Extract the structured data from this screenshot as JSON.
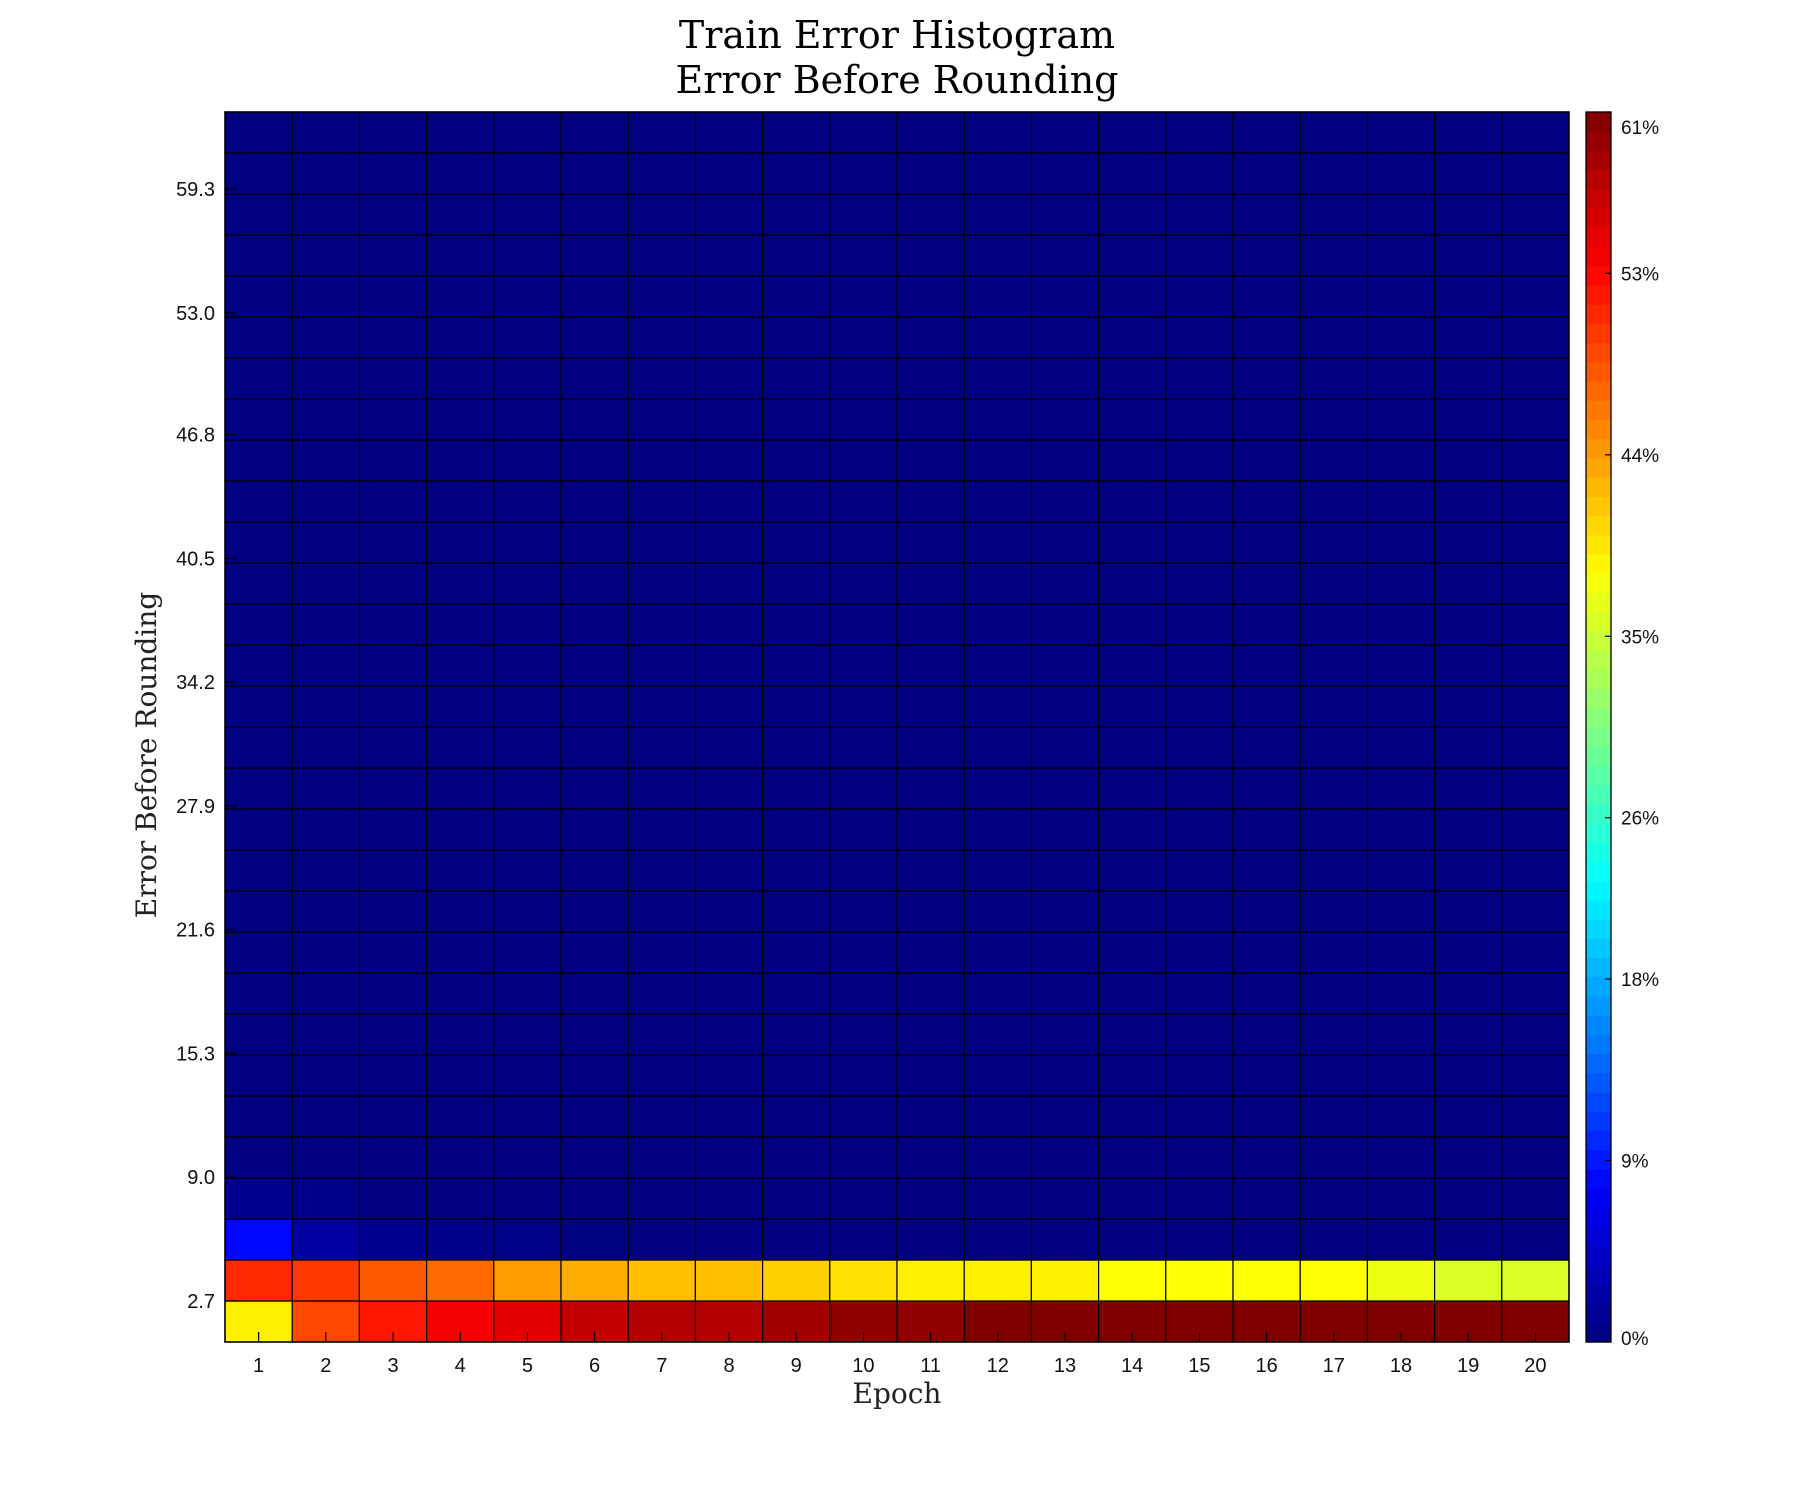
{
  "chart_data": {
    "type": "heatmap",
    "title": "Train Error Histogram",
    "subtitle": "Error Before Rounding",
    "xlabel": "Epoch",
    "ylabel": "Error Before Rounding",
    "x_ticks": [
      "1",
      "2",
      "3",
      "4",
      "5",
      "6",
      "7",
      "8",
      "9",
      "10",
      "11",
      "12",
      "13",
      "14",
      "15",
      "16",
      "17",
      "18",
      "19",
      "20"
    ],
    "y_ticks": [
      {
        "label": "2.7",
        "value": 2.7
      },
      {
        "label": "9.0",
        "value": 9.0
      },
      {
        "label": "15.3",
        "value": 15.3
      },
      {
        "label": "21.6",
        "value": 21.6
      },
      {
        "label": "27.9",
        "value": 27.9
      },
      {
        "label": "34.2",
        "value": 34.2
      },
      {
        "label": "40.5",
        "value": 40.5
      },
      {
        "label": "46.8",
        "value": 46.8
      },
      {
        "label": "53.0",
        "value": 53.0
      },
      {
        "label": "59.3",
        "value": 59.3
      }
    ],
    "y_bin_width": 2.087,
    "y_bin_count": 30,
    "ylim": [
      0.61,
      63.22
    ],
    "colorbar": {
      "colormap": "jet",
      "range": [
        0,
        61
      ],
      "ticks": [
        {
          "label": "0%",
          "value": 0
        },
        {
          "label": "9%",
          "value": 9
        },
        {
          "label": "18%",
          "value": 18
        },
        {
          "label": "26%",
          "value": 26
        },
        {
          "label": "35%",
          "value": 35
        },
        {
          "label": "44%",
          "value": 44
        },
        {
          "label": "53%",
          "value": 53
        },
        {
          "label": "61%",
          "value": 61
        }
      ]
    },
    "grid": true,
    "rows_percent_from_bottom": [
      [
        39,
        49,
        52,
        54,
        55,
        57,
        58,
        58,
        59,
        60,
        60,
        61,
        61,
        61,
        61,
        61,
        61,
        61,
        61,
        61
      ],
      [
        51,
        50,
        48,
        47,
        44,
        43,
        42,
        42,
        41,
        40,
        39,
        39,
        39,
        38,
        38,
        38,
        38,
        37,
        36,
        36
      ],
      [
        8,
        2,
        1,
        0.5,
        0.3,
        0.2,
        0.1,
        0.1,
        0,
        0,
        0,
        0,
        0,
        0,
        0,
        0,
        0,
        0,
        0,
        0
      ],
      [
        1,
        0.5,
        0,
        0,
        0,
        0,
        0,
        0,
        0,
        0,
        0,
        0,
        0,
        0,
        0,
        0,
        0,
        0,
        0,
        0
      ]
    ],
    "default_percent": 0
  }
}
